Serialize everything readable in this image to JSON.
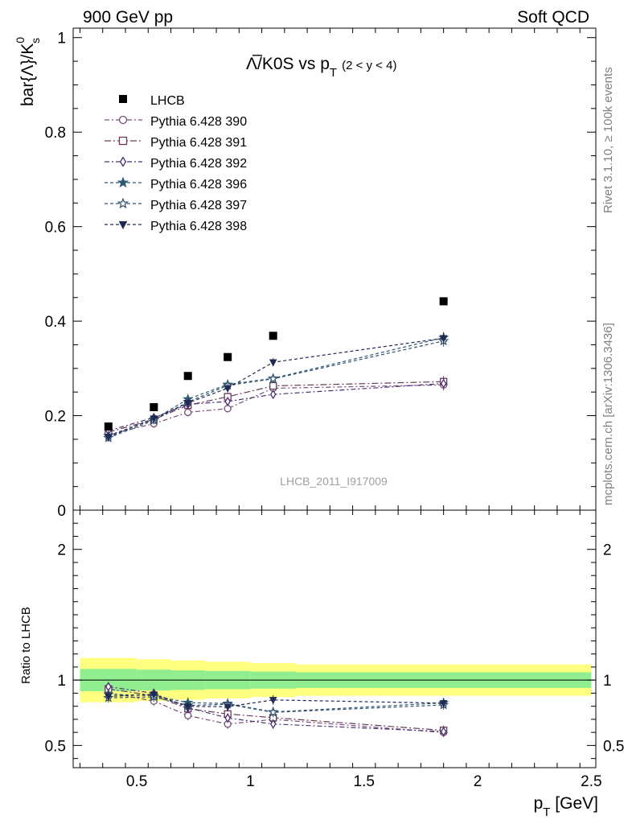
{
  "header": {
    "left": "900 GeV pp",
    "right": "Soft QCD"
  },
  "side_labels": {
    "rivet": "Rivet 3.1.10, ≥ 100k events",
    "mcplots": "mcplots.cern.ch [arXiv:1306.3436]"
  },
  "chart_data": {
    "type": "scatter",
    "title_main": "Λ̅/K0S vs p",
    "title_sub": "T",
    "title_range": "(2 < y < 4)",
    "watermark": "LHCB_2011_I917009",
    "ylabel_main": "bar{Λ}/K",
    "ylabel_sup": "0",
    "ylabel_sub": "s",
    "xlabel_main": "p",
    "xlabel_sub": "T",
    "xlabel_unit": " [GeV]",
    "ratio_ylabel": "Ratio to LHCB",
    "xlim": [
      0.22,
      2.52
    ],
    "ylim": [
      0,
      1.02
    ],
    "ratio_ylim": [
      0.33,
      2.3
    ],
    "x_ticks": [
      0.5,
      1,
      1.5,
      2,
      2.5
    ],
    "x_tick_labels": [
      "0.5",
      "1",
      "1.5",
      "2",
      "2.5"
    ],
    "y_ticks": [
      0,
      0.2,
      0.4,
      0.6,
      0.8,
      1
    ],
    "y_tick_labels": [
      "0",
      "0.2",
      "0.4",
      "0.6",
      "0.8",
      "1"
    ],
    "ratio_ticks": [
      0.5,
      1,
      2
    ],
    "ratio_tick_labels": [
      "0.5",
      "1",
      "2"
    ],
    "legend_position": "top-left",
    "data": {
      "name": "LHCB",
      "x": [
        0.375,
        0.575,
        0.725,
        0.9,
        1.1,
        1.85
      ],
      "y": [
        0.177,
        0.218,
        0.284,
        0.324,
        0.369,
        0.442
      ],
      "band_x_edges": [
        0.25,
        0.5,
        0.65,
        0.8,
        1.0,
        1.2,
        2.5
      ],
      "band_inner": [
        0.085,
        0.08,
        0.075,
        0.07,
        0.065,
        0.06
      ],
      "band_outer": [
        0.17,
        0.16,
        0.15,
        0.14,
        0.13,
        0.12
      ]
    },
    "series": [
      {
        "name": "Pythia 6.428 390",
        "color": "#7a4f7a",
        "marker": "circle",
        "dash": "6,3,2,3",
        "y": [
          0.16,
          0.183,
          0.207,
          0.215,
          0.258,
          0.265
        ]
      },
      {
        "name": "Pythia 6.428 391",
        "color": "#6a3b5a",
        "marker": "square",
        "dash": "8,3,2,3",
        "y": [
          0.165,
          0.192,
          0.222,
          0.24,
          0.263,
          0.272
        ]
      },
      {
        "name": "Pythia 6.428 392",
        "color": "#4b2f73",
        "marker": "diamond",
        "dash": "6,3,2,3",
        "y": [
          0.168,
          0.196,
          0.224,
          0.23,
          0.245,
          0.268
        ]
      },
      {
        "name": "Pythia 6.428 396",
        "color": "#2f5a73",
        "marker": "star",
        "dash": "4,3",
        "y": [
          0.158,
          0.192,
          0.235,
          0.266,
          0.279,
          0.365
        ]
      },
      {
        "name": "Pythia 6.428 397",
        "color": "#34506e",
        "marker": "star-open",
        "dash": "4,3",
        "y": [
          0.153,
          0.19,
          0.229,
          0.264,
          0.278,
          0.358
        ]
      },
      {
        "name": "Pythia 6.428 398",
        "color": "#1f2a55",
        "marker": "triangle-down",
        "dash": "4,3",
        "y": [
          0.155,
          0.194,
          0.227,
          0.258,
          0.313,
          0.364
        ]
      }
    ]
  }
}
